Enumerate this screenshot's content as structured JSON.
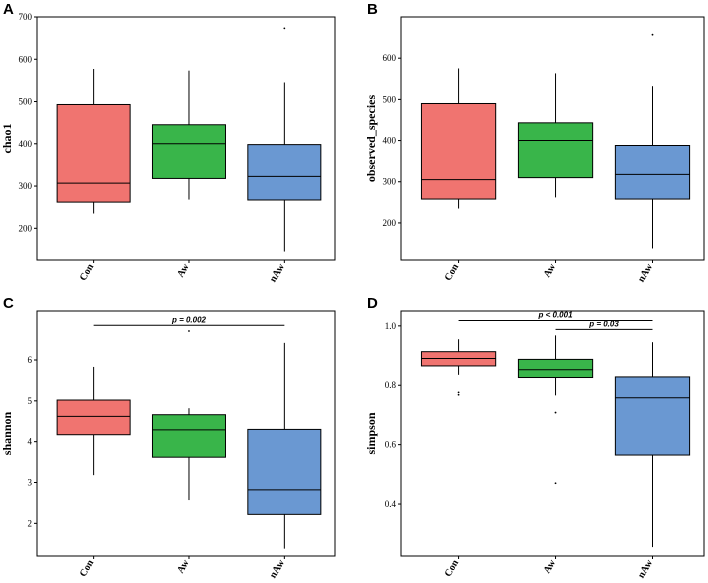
{
  "colors": {
    "Con": "#F07470",
    "Aw": "#39B54A",
    "nAw": "#6A98D2"
  },
  "chart_data": [
    {
      "type": "box",
      "panel": "A",
      "ylabel": "chao1",
      "ylim": [
        125,
        700
      ],
      "yticks": [
        200,
        300,
        400,
        500,
        600,
        700
      ],
      "categories": [
        "Con",
        "Aw",
        "nAw"
      ],
      "boxes": [
        {
          "min": 235,
          "q1": 262,
          "median": 307,
          "q3": 493,
          "max": 577,
          "outliers": []
        },
        {
          "min": 268,
          "q1": 318,
          "median": 400,
          "q3": 445,
          "max": 573,
          "outliers": []
        },
        {
          "min": 145,
          "q1": 267,
          "median": 323,
          "q3": 398,
          "max": 545,
          "outliers": [
            673
          ]
        }
      ],
      "significance": []
    },
    {
      "type": "box",
      "panel": "B",
      "ylabel": "observed_species",
      "ylim": [
        110,
        700
      ],
      "yticks": [
        200,
        300,
        400,
        500,
        600
      ],
      "categories": [
        "Con",
        "Aw",
        "nAw"
      ],
      "boxes": [
        {
          "min": 235,
          "q1": 258,
          "median": 305,
          "q3": 490,
          "max": 575,
          "outliers": []
        },
        {
          "min": 262,
          "q1": 310,
          "median": 400,
          "q3": 443,
          "max": 563,
          "outliers": []
        },
        {
          "min": 138,
          "q1": 258,
          "median": 318,
          "q3": 388,
          "max": 532,
          "outliers": [
            657
          ]
        }
      ],
      "significance": []
    },
    {
      "type": "box",
      "panel": "C",
      "ylabel": "shannon",
      "ylim": [
        1.2,
        7.2
      ],
      "yticks": [
        2,
        3,
        4,
        5,
        6
      ],
      "categories": [
        "Con",
        "Aw",
        "nAw"
      ],
      "boxes": [
        {
          "min": 3.18,
          "q1": 4.17,
          "median": 4.62,
          "q3": 5.02,
          "max": 5.83,
          "outliers": []
        },
        {
          "min": 2.57,
          "q1": 3.62,
          "median": 4.29,
          "q3": 4.66,
          "max": 4.82,
          "outliers": [
            6.71
          ]
        },
        {
          "min": 1.38,
          "q1": 2.22,
          "median": 2.82,
          "q3": 4.3,
          "max": 6.42,
          "outliers": []
        }
      ],
      "significance": [
        {
          "from": 0,
          "to": 2,
          "label": "p = 0.002",
          "y": 6.85
        }
      ]
    },
    {
      "type": "box",
      "panel": "D",
      "ylabel": "simpson",
      "ylim": [
        0.225,
        1.05
      ],
      "yticks": [
        "0.4",
        "0.6",
        "0.8",
        "1.0"
      ],
      "categories": [
        "Con",
        "Aw",
        "nAw"
      ],
      "boxes": [
        {
          "min": 0.835,
          "q1": 0.865,
          "median": 0.89,
          "q3": 0.913,
          "max": 0.955,
          "outliers": [
            0.776,
            0.768
          ]
        },
        {
          "min": 0.766,
          "q1": 0.826,
          "median": 0.852,
          "q3": 0.887,
          "max": 0.968,
          "outliers": [
            0.708,
            0.47
          ]
        },
        {
          "min": 0.255,
          "q1": 0.565,
          "median": 0.758,
          "q3": 0.828,
          "max": 0.945,
          "outliers": []
        }
      ],
      "significance": [
        {
          "from": 0,
          "to": 2,
          "label": "p < 0.001",
          "y": 1.018
        },
        {
          "from": 1,
          "to": 2,
          "label": "p = 0.03",
          "y": 0.988
        }
      ]
    }
  ]
}
